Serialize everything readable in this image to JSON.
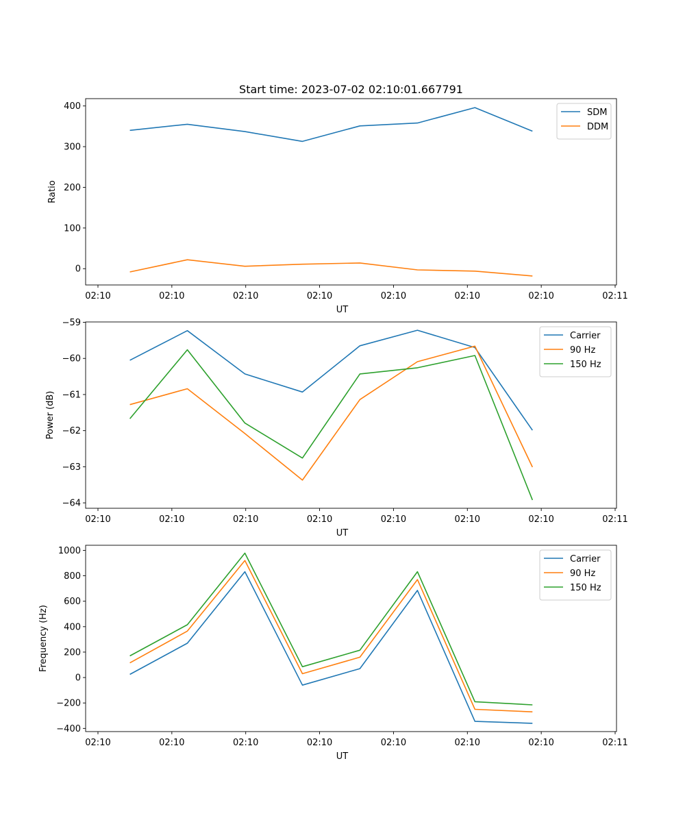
{
  "title": "Start time: 2023-07-02 02:10:01.667791",
  "colors": {
    "blue": "#1f77b4",
    "orange": "#ff7f0e",
    "green": "#2ca02c"
  },
  "chart_data": [
    {
      "type": "line",
      "xlabel": "UT",
      "ylabel": "Ratio",
      "x_tick_labels": [
        "02:10",
        "02:10",
        "02:10",
        "02:10",
        "02:10",
        "02:10",
        "02:10",
        "02:11"
      ],
      "xlim": [
        0,
        12
      ],
      "x": [
        1,
        2.3,
        3.6,
        4.9,
        6.2,
        7.5,
        8.8,
        10.1
      ],
      "ylim": [
        -40,
        418
      ],
      "yticks": [
        0,
        100,
        200,
        300,
        400
      ],
      "legend": "top-right",
      "series": [
        {
          "name": "SDM",
          "color": "#1f77b4",
          "values": [
            340,
            355,
            337,
            313,
            351,
            358,
            396,
            338
          ]
        },
        {
          "name": "DDM",
          "color": "#ff7f0e",
          "values": [
            -8,
            22,
            6,
            11,
            14,
            -3,
            -6,
            -18
          ]
        }
      ]
    },
    {
      "type": "line",
      "xlabel": "UT",
      "ylabel": "Power (dB)",
      "x_tick_labels": [
        "02:10",
        "02:10",
        "02:10",
        "02:10",
        "02:10",
        "02:10",
        "02:10",
        "02:11"
      ],
      "xlim": [
        0,
        12
      ],
      "x": [
        1,
        2.3,
        3.6,
        4.9,
        6.2,
        7.5,
        8.8,
        10.1
      ],
      "ylim": [
        -64.15,
        -58.99
      ],
      "yticks": [
        -64,
        -63,
        -62,
        -61,
        -60,
        -59
      ],
      "legend": "top-right",
      "series": [
        {
          "name": "Carrier",
          "color": "#1f77b4",
          "values": [
            -60.05,
            -59.23,
            -60.43,
            -60.93,
            -59.65,
            -59.22,
            -59.7,
            -61.99
          ]
        },
        {
          "name": "90 Hz",
          "color": "#ff7f0e",
          "values": [
            -61.28,
            -60.84,
            -62.08,
            -63.37,
            -61.14,
            -60.09,
            -59.66,
            -63.01
          ]
        },
        {
          "name": "150 Hz",
          "color": "#2ca02c",
          "values": [
            -61.67,
            -59.76,
            -61.79,
            -62.76,
            -60.43,
            -60.26,
            -59.92,
            -63.92
          ]
        }
      ]
    },
    {
      "type": "line",
      "xlabel": "UT",
      "ylabel": "Frequency (Hz)",
      "x_tick_labels": [
        "02:10",
        "02:10",
        "02:10",
        "02:10",
        "02:10",
        "02:10",
        "02:10",
        "02:11"
      ],
      "xlim": [
        0,
        12
      ],
      "x": [
        1,
        2.3,
        3.6,
        4.9,
        6.2,
        7.5,
        8.8,
        10.1
      ],
      "ylim": [
        -425,
        1040
      ],
      "yticks": [
        -400,
        -200,
        0,
        200,
        400,
        600,
        800,
        1000
      ],
      "legend": "top-right",
      "series": [
        {
          "name": "Carrier",
          "color": "#1f77b4",
          "values": [
            25,
            270,
            832,
            -60,
            70,
            685,
            -345,
            -360
          ]
        },
        {
          "name": "90 Hz",
          "color": "#ff7f0e",
          "values": [
            115,
            365,
            920,
            30,
            160,
            770,
            -250,
            -270
          ]
        },
        {
          "name": "150 Hz",
          "color": "#2ca02c",
          "values": [
            170,
            415,
            978,
            85,
            215,
            832,
            -190,
            -215
          ]
        }
      ]
    }
  ]
}
